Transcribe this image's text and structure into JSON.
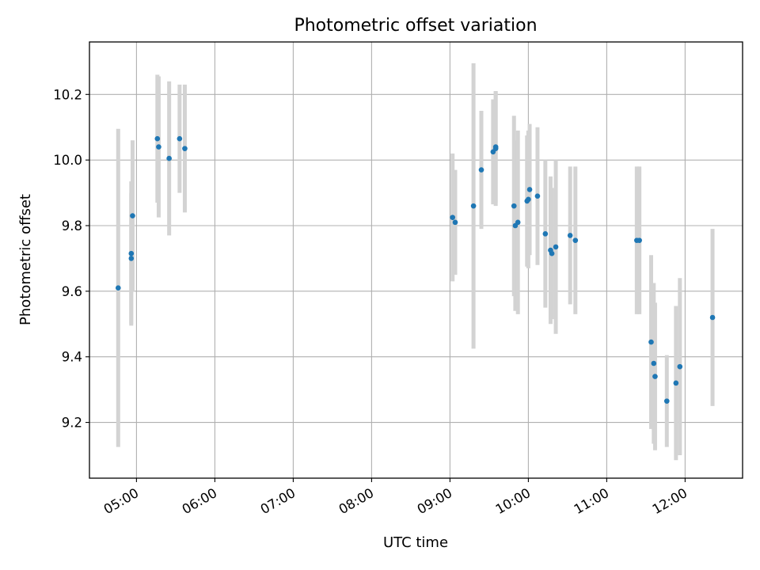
{
  "chart_data": {
    "type": "scatter",
    "title": "Photometric offset variation",
    "xlabel": "UTC time",
    "ylabel": "Photometric offset",
    "xlim": [
      "04:24",
      "12:44"
    ],
    "ylim": [
      9.03,
      10.36
    ],
    "x_ticks": [
      "05:00",
      "06:00",
      "07:00",
      "08:00",
      "09:00",
      "10:00",
      "11:00",
      "12:00"
    ],
    "y_ticks": [
      9.2,
      9.4,
      9.6,
      9.8,
      10.0,
      10.2
    ],
    "y_tick_labels": [
      "9.2",
      "9.4",
      "9.6",
      "9.8",
      "10.0",
      "10.2"
    ],
    "grid": true,
    "colors": {
      "points": "#1f77b4",
      "error_bars": "#d3d3d3",
      "grid": "#b0b0b0"
    },
    "points": [
      {
        "x": "04:46",
        "y": 9.61,
        "err": 0.485
      },
      {
        "x": "04:56",
        "y": 9.7,
        "err": 0.2
      },
      {
        "x": "04:56",
        "y": 9.715,
        "err": 0.22
      },
      {
        "x": "04:57",
        "y": 9.83,
        "err": 0.23
      },
      {
        "x": "05:16",
        "y": 10.065,
        "err": 0.195
      },
      {
        "x": "05:17",
        "y": 10.04,
        "err": 0.215
      },
      {
        "x": "05:25",
        "y": 10.005,
        "err": 0.235
      },
      {
        "x": "05:33",
        "y": 10.065,
        "err": 0.165
      },
      {
        "x": "05:37",
        "y": 10.035,
        "err": 0.195
      },
      {
        "x": "09:02",
        "y": 9.825,
        "err": 0.195
      },
      {
        "x": "09:04",
        "y": 9.81,
        "err": 0.16
      },
      {
        "x": "09:18",
        "y": 9.86,
        "err": 0.435
      },
      {
        "x": "09:24",
        "y": 9.97,
        "err": 0.18
      },
      {
        "x": "09:33",
        "y": 10.025,
        "err": 0.16
      },
      {
        "x": "09:35",
        "y": 10.04,
        "err": 0.17
      },
      {
        "x": "09:35",
        "y": 10.035,
        "err": 0.175
      },
      {
        "x": "09:49",
        "y": 9.86,
        "err": 0.275
      },
      {
        "x": "09:50",
        "y": 9.8,
        "err": 0.26
      },
      {
        "x": "09:52",
        "y": 9.81,
        "err": 0.28
      },
      {
        "x": "09:59",
        "y": 9.875,
        "err": 0.2
      },
      {
        "x": "10:00",
        "y": 9.88,
        "err": 0.21
      },
      {
        "x": "10:01",
        "y": 9.91,
        "err": 0.2
      },
      {
        "x": "10:07",
        "y": 9.89,
        "err": 0.21
      },
      {
        "x": "10:13",
        "y": 9.775,
        "err": 0.225
      },
      {
        "x": "10:17",
        "y": 9.725,
        "err": 0.225
      },
      {
        "x": "10:18",
        "y": 9.715,
        "err": 0.2
      },
      {
        "x": "10:21",
        "y": 9.735,
        "err": 0.265
      },
      {
        "x": "10:32",
        "y": 9.77,
        "err": 0.21
      },
      {
        "x": "10:36",
        "y": 9.755,
        "err": 0.225
      },
      {
        "x": "11:23",
        "y": 9.755,
        "err": 0.225
      },
      {
        "x": "11:25",
        "y": 9.755,
        "err": 0.225
      },
      {
        "x": "11:34",
        "y": 9.445,
        "err": 0.265
      },
      {
        "x": "11:36",
        "y": 9.38,
        "err": 0.245
      },
      {
        "x": "11:37",
        "y": 9.34,
        "err": 0.225
      },
      {
        "x": "11:46",
        "y": 9.265,
        "err": 0.14
      },
      {
        "x": "11:53",
        "y": 9.32,
        "err": 0.235
      },
      {
        "x": "11:56",
        "y": 9.37,
        "err": 0.27
      },
      {
        "x": "12:21",
        "y": 9.52,
        "err": 0.27
      }
    ]
  }
}
